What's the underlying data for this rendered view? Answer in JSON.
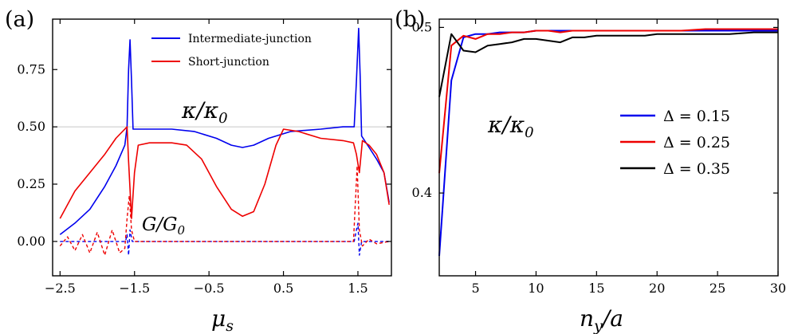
{
  "chart_data": [
    {
      "panel_label": "(a)",
      "type": "line",
      "xlabel": "μ_s",
      "xlabel_main": "μ",
      "xlabel_sub": "s",
      "ylabel": "",
      "xlim": [
        -2.6,
        1.95
      ],
      "ylim": [
        -0.15,
        0.97
      ],
      "xticks": [
        -2.5,
        -1.5,
        -0.5,
        0.5,
        1.5
      ],
      "xtick_labels": [
        "−2.5",
        "−1.5",
        "−0.5",
        "0.5",
        "1.5"
      ],
      "yticks": [
        0.0,
        0.25,
        0.5,
        0.75
      ],
      "ytick_labels": [
        "0.00",
        "0.25",
        "0.50",
        "0.75"
      ],
      "reference_line_y": 0.5,
      "legend_position": "top-center",
      "annotations": [
        {
          "text_main": "κ/κ",
          "text_sub": "0",
          "label": "κ/κ0",
          "at": [
            -0.55,
            0.62
          ]
        },
        {
          "text_main": "G/G",
          "text_sub": "0",
          "label": "G/G0",
          "at": [
            -1.28,
            0.07
          ]
        }
      ],
      "series": [
        {
          "name": "Intermediate-junction",
          "quantity": "κ/κ0",
          "color": "#0000ee",
          "style": "solid",
          "points": [
            [
              -2.5,
              0.03
            ],
            [
              -2.3,
              0.08
            ],
            [
              -2.1,
              0.14
            ],
            [
              -1.9,
              0.24
            ],
            [
              -1.75,
              0.33
            ],
            [
              -1.63,
              0.42
            ],
            [
              -1.6,
              0.5
            ],
            [
              -1.58,
              0.75
            ],
            [
              -1.56,
              0.88
            ],
            [
              -1.54,
              0.7
            ],
            [
              -1.52,
              0.49
            ],
            [
              -1.3,
              0.49
            ],
            [
              -1.0,
              0.49
            ],
            [
              -0.7,
              0.48
            ],
            [
              -0.4,
              0.45
            ],
            [
              -0.2,
              0.42
            ],
            [
              -0.05,
              0.41
            ],
            [
              0.1,
              0.42
            ],
            [
              0.3,
              0.45
            ],
            [
              0.6,
              0.48
            ],
            [
              1.0,
              0.49
            ],
            [
              1.3,
              0.5
            ],
            [
              1.45,
              0.5
            ],
            [
              1.48,
              0.7
            ],
            [
              1.51,
              0.93
            ],
            [
              1.53,
              0.72
            ],
            [
              1.55,
              0.46
            ],
            [
              1.65,
              0.41
            ],
            [
              1.75,
              0.36
            ],
            [
              1.85,
              0.3
            ],
            [
              1.92,
              0.17
            ]
          ]
        },
        {
          "name": "Short-junction",
          "quantity": "κ/κ0",
          "color": "#ee0000",
          "style": "solid",
          "points": [
            [
              -2.5,
              0.1
            ],
            [
              -2.3,
              0.22
            ],
            [
              -2.1,
              0.3
            ],
            [
              -1.9,
              0.38
            ],
            [
              -1.75,
              0.45
            ],
            [
              -1.6,
              0.5
            ],
            [
              -1.58,
              0.35
            ],
            [
              -1.54,
              0.1
            ],
            [
              -1.5,
              0.3
            ],
            [
              -1.45,
              0.42
            ],
            [
              -1.3,
              0.43
            ],
            [
              -1.0,
              0.43
            ],
            [
              -0.8,
              0.42
            ],
            [
              -0.6,
              0.36
            ],
            [
              -0.4,
              0.24
            ],
            [
              -0.2,
              0.14
            ],
            [
              -0.05,
              0.11
            ],
            [
              0.1,
              0.13
            ],
            [
              0.25,
              0.25
            ],
            [
              0.4,
              0.42
            ],
            [
              0.5,
              0.49
            ],
            [
              0.7,
              0.48
            ],
            [
              1.0,
              0.45
            ],
            [
              1.3,
              0.44
            ],
            [
              1.44,
              0.43
            ],
            [
              1.48,
              0.38
            ],
            [
              1.52,
              0.3
            ],
            [
              1.56,
              0.44
            ],
            [
              1.65,
              0.42
            ],
            [
              1.75,
              0.38
            ],
            [
              1.85,
              0.3
            ],
            [
              1.92,
              0.16
            ]
          ]
        },
        {
          "name": "Intermediate-junction",
          "quantity": "G/G0",
          "color": "#0000ee",
          "style": "dashed",
          "points": [
            [
              -2.5,
              0.0
            ],
            [
              -1.62,
              0.0
            ],
            [
              -1.6,
              0.03
            ],
            [
              -1.58,
              -0.06
            ],
            [
              -1.56,
              0.05
            ],
            [
              -1.53,
              0.0
            ],
            [
              1.45,
              0.0
            ],
            [
              1.48,
              0.05
            ],
            [
              1.5,
              0.08
            ],
            [
              1.52,
              -0.06
            ],
            [
              1.55,
              0.0
            ],
            [
              1.92,
              0.0
            ]
          ]
        },
        {
          "name": "Short-junction",
          "quantity": "G/G0",
          "color": "#ee0000",
          "style": "dashed",
          "points": [
            [
              -2.5,
              -0.02
            ],
            [
              -2.4,
              0.02
            ],
            [
              -2.3,
              -0.04
            ],
            [
              -2.2,
              0.03
            ],
            [
              -2.1,
              -0.05
            ],
            [
              -2.0,
              0.04
            ],
            [
              -1.9,
              -0.06
            ],
            [
              -1.8,
              0.05
            ],
            [
              -1.7,
              -0.05
            ],
            [
              -1.63,
              -0.03
            ],
            [
              -1.6,
              0.1
            ],
            [
              -1.57,
              0.2
            ],
            [
              -1.54,
              0.05
            ],
            [
              -1.5,
              0.0
            ],
            [
              1.44,
              0.0
            ],
            [
              1.47,
              0.2
            ],
            [
              1.49,
              0.33
            ],
            [
              1.52,
              0.05
            ],
            [
              1.56,
              -0.02
            ],
            [
              1.65,
              0.01
            ],
            [
              1.75,
              -0.01
            ],
            [
              1.92,
              0.0
            ]
          ]
        }
      ]
    },
    {
      "panel_label": "(b)",
      "type": "line",
      "xlabel": "n_y/a",
      "xlabel_main": "n",
      "xlabel_sub": "y",
      "xlabel_tail": "/a",
      "ylabel": "",
      "xlim": [
        2,
        30
      ],
      "ylim": [
        0.35,
        0.505
      ],
      "xticks": [
        5,
        10,
        15,
        20,
        25,
        30
      ],
      "xtick_labels": [
        "5",
        "10",
        "15",
        "20",
        "25",
        "30"
      ],
      "yticks": [
        0.4,
        0.5
      ],
      "ytick_labels": [
        "0.4",
        "0.5"
      ],
      "legend_position": "center-right",
      "annotations": [
        {
          "text_main": "κ/κ",
          "text_sub": "0",
          "label": "κ/κ0",
          "at": [
            6.7,
            0.455
          ]
        }
      ],
      "series": [
        {
          "name": "Δ = 0.15",
          "color": "#0000ee",
          "x": [
            2,
            3,
            4,
            5,
            6,
            7,
            8,
            9,
            10,
            11,
            12,
            13,
            14,
            15,
            16,
            17,
            18,
            19,
            20,
            22,
            24,
            26,
            28,
            30
          ],
          "y": [
            0.362,
            0.468,
            0.494,
            0.496,
            0.496,
            0.497,
            0.497,
            0.497,
            0.498,
            0.498,
            0.498,
            0.498,
            0.498,
            0.498,
            0.498,
            0.498,
            0.498,
            0.498,
            0.498,
            0.498,
            0.498,
            0.498,
            0.498,
            0.498
          ]
        },
        {
          "name": "Δ = 0.25",
          "color": "#ee0000",
          "x": [
            2,
            3,
            4,
            5,
            6,
            7,
            8,
            9,
            10,
            11,
            12,
            13,
            14,
            15,
            16,
            17,
            18,
            19,
            20,
            22,
            24,
            26,
            28,
            30
          ],
          "y": [
            0.412,
            0.489,
            0.495,
            0.493,
            0.496,
            0.496,
            0.497,
            0.497,
            0.498,
            0.498,
            0.497,
            0.498,
            0.498,
            0.498,
            0.498,
            0.498,
            0.498,
            0.498,
            0.498,
            0.498,
            0.499,
            0.499,
            0.499,
            0.499
          ]
        },
        {
          "name": "Δ = 0.35",
          "color": "#000000",
          "x": [
            2,
            3,
            4,
            5,
            6,
            7,
            8,
            9,
            10,
            11,
            12,
            13,
            14,
            15,
            16,
            17,
            18,
            19,
            20,
            22,
            24,
            26,
            28,
            30
          ],
          "y": [
            0.458,
            0.496,
            0.486,
            0.485,
            0.489,
            0.49,
            0.491,
            0.493,
            0.493,
            0.492,
            0.491,
            0.494,
            0.494,
            0.495,
            0.495,
            0.495,
            0.495,
            0.495,
            0.496,
            0.496,
            0.496,
            0.496,
            0.497,
            0.497
          ]
        }
      ]
    }
  ]
}
